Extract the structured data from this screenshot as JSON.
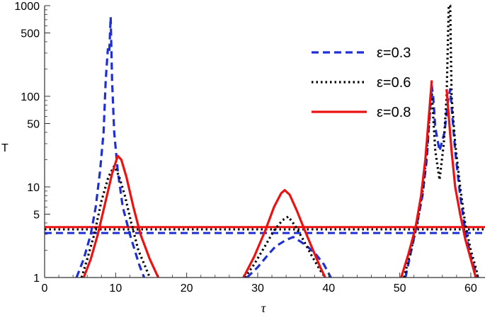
{
  "chart_data": {
    "type": "line",
    "xlabel": "τ",
    "ylabel": "T",
    "xlim": [
      0,
      62
    ],
    "ylim": [
      1,
      1000
    ],
    "yscale": "log",
    "xticks": [
      0,
      10,
      20,
      30,
      40,
      50,
      60
    ],
    "yticks": [
      1,
      5,
      10,
      50,
      100,
      500,
      1000
    ],
    "legend_position": "top-right",
    "series": [
      {
        "name": "ε=0.3",
        "style": "dashed",
        "color": "#1f2fd6",
        "baseline": 3.1,
        "segments": [
          [
            [
              4.5,
              1
            ],
            [
              5.5,
              1.6
            ],
            [
              6.5,
              3
            ],
            [
              7.2,
              6
            ],
            [
              7.8,
              15
            ],
            [
              8.3,
              40
            ],
            [
              8.6,
              150
            ],
            [
              8.9,
              330
            ],
            [
              9.1,
              300
            ],
            [
              9.3,
              750
            ],
            [
              9.5,
              150
            ],
            [
              9.8,
              40
            ],
            [
              10.3,
              15
            ],
            [
              11,
              6
            ],
            [
              12,
              3
            ],
            [
              13.3,
              1.4
            ],
            [
              14,
              1
            ]
          ],
          [
            [
              28.5,
              1
            ],
            [
              30,
              1.3
            ],
            [
              31.5,
              1.8
            ],
            [
              32.5,
              2.2
            ],
            [
              34,
              2.6
            ],
            [
              35,
              2.8
            ],
            [
              36,
              2.5
            ],
            [
              37,
              2.2
            ],
            [
              38.2,
              1.8
            ],
            [
              39.3,
              1.4
            ],
            [
              40.3,
              1
            ]
          ],
          [
            [
              50.8,
              1
            ],
            [
              51.5,
              1.8
            ],
            [
              52.3,
              3.5
            ],
            [
              53.2,
              8
            ],
            [
              53.8,
              20
            ],
            [
              54.2,
              60
            ],
            [
              54.5,
              130
            ],
            [
              54.7,
              100
            ],
            [
              55,
              45
            ],
            [
              55.6,
              25
            ],
            [
              56.3,
              40
            ],
            [
              56.8,
              90
            ],
            [
              57.1,
              120
            ],
            [
              57.4,
              60
            ],
            [
              57.8,
              25
            ],
            [
              58.5,
              8
            ],
            [
              59.3,
              3
            ],
            [
              60.2,
              1.5
            ],
            [
              61,
              1
            ]
          ]
        ]
      },
      {
        "name": "ε=0.6",
        "style": "dotted",
        "color": "#000000",
        "baseline": 3.4,
        "segments": [
          [
            [
              5.2,
              1
            ],
            [
              6,
              1.6
            ],
            [
              7,
              3
            ],
            [
              8,
              7
            ],
            [
              9,
              13
            ],
            [
              9.8,
              17
            ],
            [
              10.5,
              13
            ],
            [
              11.3,
              8
            ],
            [
              12.2,
              4
            ],
            [
              13.2,
              2
            ],
            [
              14.2,
              1.3
            ],
            [
              14.8,
              1
            ]
          ],
          [
            [
              28.2,
              1
            ],
            [
              29.5,
              1.4
            ],
            [
              31,
              2.2
            ],
            [
              32.3,
              3.3
            ],
            [
              33.5,
              4.3
            ],
            [
              34.3,
              4.7
            ],
            [
              35.2,
              3.8
            ],
            [
              36.3,
              2.7
            ],
            [
              37.5,
              1.8
            ],
            [
              38.8,
              1.2
            ],
            [
              39.5,
              1
            ]
          ],
          [
            [
              50.6,
              1
            ],
            [
              51.5,
              1.9
            ],
            [
              52.5,
              4
            ],
            [
              53.3,
              10
            ],
            [
              53.8,
              25
            ],
            [
              54.2,
              60
            ],
            [
              54.5,
              110
            ],
            [
              54.7,
              60
            ],
            [
              55,
              25
            ],
            [
              55.6,
              12
            ],
            [
              56.2,
              30
            ],
            [
              56.6,
              100
            ],
            [
              56.9,
              1000
            ],
            [
              57.1,
              1000
            ],
            [
              57.3,
              100
            ],
            [
              57.8,
              30
            ],
            [
              58.5,
              10
            ],
            [
              59.2,
              4
            ],
            [
              60,
              2
            ],
            [
              60.8,
              1.2
            ],
            [
              61,
              1
            ]
          ]
        ]
      },
      {
        "name": "ε=0.8",
        "style": "solid",
        "color": "#ee1111",
        "baseline": 3.6,
        "segments": [
          [
            [
              5.5,
              1
            ],
            [
              6.5,
              1.6
            ],
            [
              7.5,
              3
            ],
            [
              8.5,
              6.5
            ],
            [
              9.5,
              14
            ],
            [
              10.3,
              22
            ],
            [
              10.8,
              20
            ],
            [
              11.5,
              13
            ],
            [
              12.5,
              6
            ],
            [
              13.5,
              3
            ],
            [
              14.8,
              1.6
            ],
            [
              16,
              1
            ]
          ],
          [
            [
              28,
              1
            ],
            [
              29.5,
              1.7
            ],
            [
              31,
              3.2
            ],
            [
              32.3,
              6
            ],
            [
              33.3,
              8.5
            ],
            [
              33.8,
              9.2
            ],
            [
              34.5,
              8.2
            ],
            [
              35.5,
              5.5
            ],
            [
              36.5,
              3.5
            ],
            [
              37.8,
              2
            ],
            [
              38.8,
              1.3
            ],
            [
              39.5,
              1
            ]
          ],
          [
            [
              50.2,
              1
            ],
            [
              51.2,
              1.8
            ],
            [
              52.2,
              3.5
            ],
            [
              53,
              8
            ],
            [
              53.6,
              20
            ],
            [
              54.1,
              60
            ],
            [
              54.5,
              150
            ]
          ],
          [
            [
              56.6,
              120
            ],
            [
              56.9,
              60
            ],
            [
              57.3,
              25
            ],
            [
              57.8,
              10
            ],
            [
              58.5,
              5
            ],
            [
              59.2,
              2.7
            ],
            [
              60,
              1.6
            ],
            [
              60.7,
              1
            ]
          ]
        ]
      }
    ]
  }
}
